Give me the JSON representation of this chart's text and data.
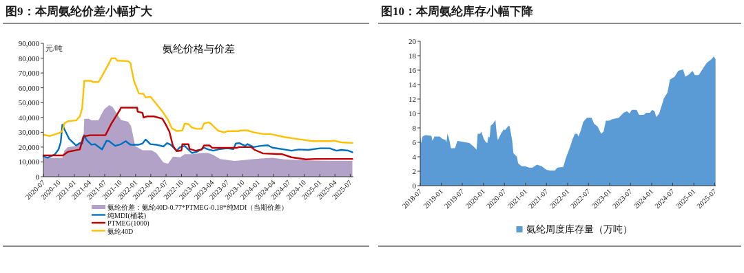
{
  "chart_data": [
    {
      "type": "line",
      "title": "图9：本周氨纶价差小幅扩大",
      "subtitle": "氨纶价格与价差",
      "ylabel": "元/吨",
      "legend": "bottom",
      "xlim": [
        "2020-07-01",
        "2025-07-20"
      ],
      "xticks": [
        "2020-07",
        "2020-10",
        "2021-01",
        "2021-04",
        "2021-07",
        "2021-10",
        "2022-01",
        "2022-04",
        "2022-07",
        "2022-10",
        "2023-01",
        "2023-04",
        "2023-07",
        "2023-10",
        "2024-01",
        "2024-04",
        "2024-07",
        "2024-10",
        "2025-01",
        "2025-04",
        "2025-07"
      ],
      "ylim": [
        0,
        90000
      ],
      "yticks": [
        0,
        {
          "value": 10000,
          "label": "10,000"
        },
        {
          "value": 20000,
          "label": "20,000"
        },
        {
          "value": 30000,
          "label": "30,000"
        },
        {
          "value": 40000,
          "label": "40,000"
        },
        {
          "value": 50000,
          "label": "50,000"
        },
        {
          "value": 60000,
          "label": "60,000"
        },
        {
          "value": 70000,
          "label": "70,000"
        },
        {
          "value": 80000,
          "label": "80,000"
        },
        {
          "value": 90000,
          "label": "90,000"
        }
      ],
      "series": [
        {
          "name": "氨纶价差：氨纶40D-0.77*PTMEG-0.18*纯MDI（当期价差）",
          "type": "area",
          "color": "#b3a2c7",
          "x": [
            "2020-07-01",
            "2020-10-22",
            "2020-11-03",
            "2020-11-24",
            "2021-01-12",
            "2021-02-10",
            "2021-02-24",
            "2021-03-01",
            "2021-03-29",
            "2021-04-13",
            "2021-05-25",
            "2021-06-08",
            "2021-06-28",
            "2021-07-27",
            "2021-08-17",
            "2021-09-08",
            "2021-10-06",
            "2021-11-17",
            "2021-12-04",
            "2021-12-15",
            "2021-12-29",
            "2022-02-11",
            "2022-04-06",
            "2022-05-04",
            "2022-06-15",
            "2022-07-13",
            "2022-08-11",
            "2022-09-23",
            "2022-10-20",
            "2022-12-02",
            "2023-01-29",
            "2023-03-10",
            "2023-04-08",
            "2023-05-19",
            "2023-08-13",
            "2023-10-08",
            "2023-11-20",
            "2024-01-15",
            "2024-03-25",
            "2024-06-04",
            "2024-08-28",
            "2024-12-05",
            "2025-03-13",
            "2025-07-14"
          ],
          "values": [
            12800,
            12800,
            17600,
            20000,
            20800,
            24000,
            24000,
            39100,
            39100,
            38000,
            38000,
            41500,
            45500,
            48200,
            47100,
            43100,
            38300,
            37100,
            34300,
            28800,
            20800,
            17900,
            17900,
            16000,
            9600,
            8800,
            13600,
            13100,
            15200,
            15200,
            16000,
            16000,
            14700,
            12000,
            10700,
            11200,
            11700,
            12300,
            12800,
            11700,
            11200,
            10900,
            10700,
            10700
          ]
        },
        {
          "name": "纯MDI(桶装)",
          "type": "line",
          "color": "#0070c0",
          "x": [
            "2020-07-01",
            "2020-07-26",
            "2020-09-08",
            "2020-09-29",
            "2020-10-12",
            "2020-10-22",
            "2020-11-03",
            "2020-12-01",
            "2021-01-12",
            "2021-02-03",
            "2021-02-17",
            "2021-03-01",
            "2021-03-15",
            "2021-04-13",
            "2021-05-03",
            "2021-06-15",
            "2021-07-12",
            "2021-07-27",
            "2021-09-01",
            "2021-10-06",
            "2021-11-03",
            "2021-12-01",
            "2021-12-29",
            "2022-01-20",
            "2022-02-11",
            "2022-03-01",
            "2022-03-30",
            "2022-05-04",
            "2022-06-15",
            "2022-07-07",
            "2022-07-28",
            "2022-09-02",
            "2022-09-23",
            "2022-10-20",
            "2022-12-02",
            "2023-01-01",
            "2023-02-12",
            "2023-03-10",
            "2023-04-08",
            "2023-05-19",
            "2023-07-01",
            "2023-08-06",
            "2023-08-20",
            "2023-09-10",
            "2023-10-15",
            "2023-10-29",
            "2023-12-04",
            "2024-01-15",
            "2024-02-27",
            "2024-03-25",
            "2024-06-04",
            "2024-07-16",
            "2024-08-28",
            "2024-10-24",
            "2025-01-03",
            "2025-02-28",
            "2025-04-10",
            "2025-05-08",
            "2025-06-20",
            "2025-07-14"
          ],
          "values": [
            13600,
            12800,
            15200,
            18400,
            23200,
            35100,
            32000,
            25600,
            21100,
            22700,
            22400,
            28000,
            24800,
            21600,
            22000,
            18400,
            24300,
            24000,
            20800,
            22000,
            24000,
            21600,
            21600,
            21600,
            22400,
            25100,
            22000,
            21600,
            20400,
            22700,
            21600,
            17600,
            20000,
            20800,
            16000,
            16800,
            19500,
            18400,
            17600,
            18700,
            19200,
            18700,
            22400,
            22700,
            20800,
            22000,
            20000,
            20800,
            21200,
            19600,
            18400,
            17600,
            18400,
            18100,
            19200,
            19200,
            17600,
            18100,
            17600,
            16500
          ]
        },
        {
          "name": "PTMEG(1000)",
          "type": "line",
          "color": "#c00000",
          "x": [
            "2020-07-01",
            "2020-10-26",
            "2020-11-24",
            "2021-01-12",
            "2021-02-03",
            "2021-02-24",
            "2021-04-05",
            "2021-07-05",
            "2021-08-10",
            "2021-09-29",
            "2021-10-06",
            "2022-01-10",
            "2022-01-13",
            "2022-02-11",
            "2022-02-17",
            "2022-03-09",
            "2022-04-20",
            "2022-06-09",
            "2022-06-30",
            "2022-07-21",
            "2022-08-11",
            "2022-09-02",
            "2022-09-30",
            "2022-10-06",
            "2022-11-12",
            "2022-11-18",
            "2022-12-24",
            "2023-01-29",
            "2023-02-12",
            "2023-03-17",
            "2023-04-01",
            "2023-08-27",
            "2023-09-10",
            "2023-11-20",
            "2023-12-11",
            "2024-01-29",
            "2024-05-21",
            "2024-07-16",
            "2024-10-10",
            "2024-12-05",
            "2025-07-14"
          ],
          "values": [
            14400,
            14400,
            16800,
            17900,
            18400,
            27200,
            28000,
            28000,
            35900,
            45000,
            46600,
            46600,
            43900,
            43100,
            39900,
            40700,
            40700,
            39100,
            35100,
            30400,
            20800,
            17300,
            17600,
            21900,
            21900,
            18700,
            17600,
            18400,
            21100,
            21100,
            19500,
            19500,
            20000,
            20000,
            18100,
            15700,
            15200,
            13100,
            11700,
            12000,
            12000
          ]
        },
        {
          "name": "氨纶40D",
          "type": "line",
          "color": "#ffc000",
          "x": [
            "2020-07-01",
            "2020-08-10",
            "2020-10-04",
            "2020-10-22",
            "2020-11-03",
            "2020-11-24",
            "2021-01-12",
            "2021-02-03",
            "2021-02-17",
            "2021-03-01",
            "2021-04-13",
            "2021-04-20",
            "2021-05-25",
            "2021-06-15",
            "2021-07-27",
            "2021-08-10",
            "2021-09-01",
            "2021-09-15",
            "2021-11-17",
            "2021-12-01",
            "2021-12-22",
            "2022-01-20",
            "2022-02-17",
            "2022-03-01",
            "2022-03-30",
            "2022-04-20",
            "2022-06-15",
            "2022-07-13",
            "2022-08-04",
            "2022-09-02",
            "2022-10-06",
            "2022-10-20",
            "2022-11-12",
            "2022-12-02",
            "2023-01-01",
            "2023-01-29",
            "2023-02-12",
            "2023-03-10",
            "2023-03-24",
            "2023-05-05",
            "2023-06-10",
            "2023-07-01",
            "2023-09-03",
            "2023-09-17",
            "2023-10-29",
            "2023-12-04",
            "2024-01-29",
            "2024-03-11",
            "2024-06-04",
            "2024-08-13",
            "2024-11-21",
            "2025-02-28",
            "2025-03-26",
            "2025-05-08",
            "2025-07-14"
          ],
          "values": [
            28300,
            27500,
            29500,
            30700,
            36000,
            37500,
            38000,
            40700,
            46300,
            64700,
            64700,
            63900,
            63900,
            67900,
            76700,
            79900,
            79900,
            78300,
            78000,
            76700,
            64700,
            56200,
            55900,
            53500,
            54000,
            51100,
            43100,
            38300,
            32700,
            30800,
            31200,
            35900,
            35500,
            33100,
            32300,
            32300,
            35900,
            36700,
            35900,
            31200,
            29900,
            30700,
            30700,
            31200,
            31200,
            30000,
            28800,
            28800,
            26800,
            25600,
            24000,
            24000,
            24400,
            23200,
            22800
          ]
        }
      ]
    },
    {
      "type": "area",
      "title": "图10：本周氨纶库存小幅下降",
      "legend": "bottom",
      "xlim": [
        "2018-07-01",
        "2025-07-10"
      ],
      "xticks": [
        "2018-07",
        "2019-01",
        "2019-07",
        "2020-01",
        "2020-07",
        "2021-01",
        "2021-07",
        "2022-01",
        "2022-07",
        "2023-01",
        "2023-07",
        "2024-01",
        "2024-07",
        "2025-01",
        "2025-07"
      ],
      "ylim": [
        0,
        20
      ],
      "yticks": [
        0,
        2,
        4,
        6,
        8,
        10,
        12,
        14,
        16,
        18,
        20
      ],
      "series": [
        {
          "name": "氨纶周度库存量（万吨）",
          "color": "#5b9bd5",
          "x": [
            "2018-07-01",
            "2018-07-09",
            "2018-07-21",
            "2018-08-16",
            "2018-10-06",
            "2018-10-16",
            "2018-11-01",
            "2018-12-17",
            "2019-01-08",
            "2019-02-08",
            "2019-02-14",
            "2019-02-22",
            "2019-03-09",
            "2019-03-25",
            "2019-04-29",
            "2019-05-20",
            "2019-06-30",
            "2019-09-01",
            "2019-10-02",
            "2019-11-02",
            "2019-11-12",
            "2019-12-03",
            "2019-12-13",
            "2020-01-03",
            "2020-01-23",
            "2020-02-03",
            "2020-02-14",
            "2020-02-24",
            "2020-03-04",
            "2020-03-25",
            "2020-04-14",
            "2020-04-25",
            "2020-05-05",
            "2020-06-05",
            "2020-06-26",
            "2020-07-06",
            "2020-08-06",
            "2020-08-16",
            "2020-09-07",
            "2020-09-17",
            "2020-10-18",
            "2020-10-28",
            "2020-11-28",
            "2020-12-29",
            "2021-01-30",
            "2021-02-28",
            "2021-04-10",
            "2021-05-21",
            "2021-07-01",
            "2021-08-02",
            "2021-09-12",
            "2021-10-03",
            "2021-11-24",
            "2021-12-14",
            "2022-01-25",
            "2022-02-14",
            "2022-03-05",
            "2022-03-26",
            "2022-04-05",
            "2022-04-26",
            "2022-05-16",
            "2022-06-17",
            "2022-07-28",
            "2022-08-18",
            "2022-09-18",
            "2022-10-19",
            "2022-11-09",
            "2022-11-29",
            "2022-12-30",
            "2023-01-20",
            "2023-03-21",
            "2023-05-01",
            "2023-06-01",
            "2023-06-22",
            "2023-07-12",
            "2023-08-23",
            "2023-09-13",
            "2023-10-24",
            "2023-11-14",
            "2023-12-15",
            "2024-01-05",
            "2024-01-26",
            "2024-02-09",
            "2024-03-06",
            "2024-04-16",
            "2024-05-17",
            "2024-06-07",
            "2024-07-18",
            "2024-08-18",
            "2024-09-29",
            "2024-10-19",
            "2024-11-20",
            "2024-12-20",
            "2025-01-10",
            "2025-02-11",
            "2025-03-12",
            "2025-04-22",
            "2025-06-02",
            "2025-06-23",
            "2025-07-08"
          ],
          "values": [
            6.8,
            5.9,
            6.8,
            7.0,
            6.9,
            6.2,
            6.8,
            6.8,
            6.5,
            6.3,
            6.0,
            7.2,
            6.5,
            5.2,
            5.2,
            6.2,
            6.1,
            5.9,
            5.5,
            5.0,
            7.2,
            7.2,
            7.5,
            6.5,
            6.0,
            5.9,
            6.8,
            6.7,
            8.3,
            8.6,
            9.1,
            7.2,
            6.3,
            7.3,
            7.8,
            7.7,
            8.3,
            8.2,
            6.2,
            4.5,
            4.0,
            3.1,
            2.7,
            2.7,
            2.5,
            2.5,
            2.9,
            2.7,
            2.2,
            2.1,
            2.1,
            2.5,
            2.6,
            3.7,
            5.5,
            6.5,
            7.2,
            7.2,
            6.8,
            7.7,
            8.8,
            9.4,
            9.4,
            8.6,
            8.2,
            7.2,
            7.5,
            9.0,
            9.0,
            9.2,
            9.4,
            10.1,
            10.3,
            10.0,
            10.5,
            10.5,
            9.8,
            9.8,
            10.1,
            10.1,
            10.5,
            10.3,
            9.5,
            10.0,
            12.1,
            12.9,
            14.7,
            15.1,
            15.9,
            16.1,
            15.1,
            15.4,
            15.9,
            15.3,
            15.3,
            16.0,
            17.0,
            17.5,
            17.9,
            17.5
          ]
        }
      ]
    }
  ]
}
